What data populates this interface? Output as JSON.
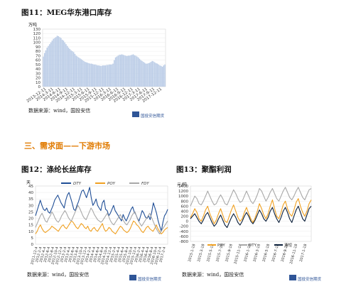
{
  "figures": {
    "f11": {
      "title": "图11：MEG华东港口库存",
      "unit": "万吨",
      "source": "数据来源：wind，国投安信",
      "logo": "国投安信期货"
    },
    "f12": {
      "title": "图12：涤纶长丝库存",
      "unit": "天",
      "source": "数据来源：wind，国投安信",
      "logo": "国投安信期货"
    },
    "f13": {
      "title": "图13：聚酯利润",
      "unit": "元/吨",
      "source": "数据来源：wind，国投安信",
      "logo": "国投安信期货"
    }
  },
  "section_heading": "三、需求面——下游市场",
  "colors": {
    "bar": "#b9cbe6",
    "dty": "#1f4e96",
    "poy": "#f0a020",
    "fdy": "#a8a8a8",
    "section": "#e07a00",
    "logo": "#2f5597"
  },
  "chart_data": [
    {
      "id": "meg-inventory",
      "type": "bar",
      "ylim": [
        0,
        130
      ],
      "yticks": [
        0,
        10,
        20,
        30,
        40,
        50,
        60,
        70,
        80,
        90,
        100,
        110,
        120,
        130
      ],
      "xticks": [
        "2013-12-11",
        "2014-3-11",
        "2014-6-11",
        "2014-9-11",
        "2014-12-11",
        "2015-3-11",
        "2015-6-11",
        "2015-9-11",
        "2015-12-11",
        "2016-3-11",
        "2016-6-11",
        "2016-9-11",
        "2016-12-11",
        "2017-3-11",
        "2017-6-11",
        "2017-9-11",
        "2017-12-11"
      ],
      "series": [
        {
          "values": [
            68,
            76,
            82,
            88,
            92,
            96,
            100,
            104,
            108,
            110,
            112,
            115,
            114,
            112,
            110,
            106,
            104,
            100,
            96,
            92,
            88,
            85,
            82,
            80,
            78,
            74,
            70,
            68,
            66,
            64,
            62,
            60,
            58,
            56,
            55,
            54,
            53,
            52,
            52,
            51,
            50,
            50,
            49,
            48,
            48,
            47,
            47,
            48,
            48,
            48,
            49,
            49,
            50,
            50,
            50,
            52,
            60,
            66,
            68,
            70,
            72,
            72,
            73,
            72,
            71,
            70,
            69,
            70,
            70,
            71,
            72,
            73,
            71,
            70,
            68,
            66,
            63,
            60,
            58,
            56,
            54,
            52,
            52,
            53,
            54,
            56,
            58,
            57,
            55,
            53,
            52,
            50,
            48,
            47,
            45,
            48,
            50
          ]
        }
      ]
    },
    {
      "id": "filament-inventory",
      "type": "line",
      "ylim": [
        0,
        45
      ],
      "yticks": [
        0,
        5,
        10,
        15,
        20,
        25,
        30,
        35,
        40,
        45
      ],
      "xticks": [
        "2011-12-4",
        "2012-2-4",
        "2012-4-4",
        "2012-6-4",
        "2012-8-4",
        "2012-10-4",
        "2012-12-4",
        "2013-2-4",
        "2013-4-4",
        "2013-6-4",
        "2013-8-4",
        "2013-10-4",
        "2013-12-4",
        "2014-2-4",
        "2014-4-4",
        "2014-6-4",
        "2014-8-4",
        "2014-10-4",
        "2014-12-4",
        "2015-2-4",
        "2015-4-4",
        "2015-6-4",
        "2015-8-4",
        "2015-10-4",
        "2015-12-4",
        "2016-2-4",
        "2016-4-4",
        "2016-6-4",
        "2016-8-4",
        "2016-10-4",
        "2016-12-4",
        "2017-2-4"
      ],
      "legend": [
        "DTY",
        "POY",
        "FDY"
      ],
      "series": [
        {
          "name": "DTY",
          "values": [
            22,
            26,
            30,
            34,
            30,
            27,
            26,
            28,
            25,
            24,
            27,
            30,
            34,
            36,
            38,
            35,
            32,
            30,
            28,
            34,
            38,
            40,
            36,
            32,
            27,
            26,
            30,
            33,
            37,
            41,
            42,
            39,
            36,
            40,
            44,
            36,
            30,
            32,
            35,
            30,
            28,
            26,
            32,
            34,
            27,
            26,
            22,
            24,
            27,
            30,
            26,
            24,
            22,
            20,
            18,
            23,
            20,
            18,
            21,
            24,
            27,
            29,
            25,
            23,
            20,
            18,
            22,
            26,
            24,
            21,
            20,
            22,
            19,
            25,
            32,
            28,
            24,
            18,
            14,
            10,
            17,
            22,
            24,
            27
          ]
        },
        {
          "name": "POY",
          "values": [
            8,
            10,
            13,
            15,
            12,
            10,
            9,
            10,
            11,
            12,
            14,
            13,
            12,
            11,
            10,
            12,
            14,
            15,
            13,
            12,
            14,
            16,
            18,
            17,
            15,
            13,
            12,
            14,
            16,
            15,
            13,
            12,
            14,
            11,
            10,
            12,
            13,
            11,
            10,
            12,
            14,
            16,
            12,
            10,
            11,
            13,
            12,
            10,
            9,
            8,
            10,
            12,
            14,
            13,
            11,
            10,
            9,
            10,
            12,
            15,
            18,
            17,
            15,
            14,
            12,
            10,
            9,
            11,
            13,
            14,
            12,
            11,
            10,
            12,
            15,
            12,
            10,
            8,
            9,
            11,
            12,
            13
          ]
        },
        {
          "name": "FDY",
          "values": [
            13,
            16,
            19,
            22,
            24,
            21,
            18,
            17,
            20,
            22,
            25,
            23,
            20,
            18,
            17,
            19,
            22,
            24,
            26,
            24,
            21,
            19,
            18,
            21,
            24,
            27,
            30,
            28,
            25,
            22,
            20,
            19,
            22,
            25,
            28,
            26,
            23,
            21,
            19,
            18,
            17,
            18,
            20,
            22,
            24,
            21,
            18,
            16,
            15,
            17,
            19,
            21,
            23,
            20,
            18,
            16,
            15,
            17,
            19,
            22,
            24,
            25,
            21,
            18,
            16,
            14,
            16,
            18,
            20,
            22,
            24,
            21,
            18,
            15,
            12,
            10,
            8,
            10,
            12,
            14,
            16,
            18
          ]
        }
      ]
    },
    {
      "id": "polyester-profit",
      "type": "line",
      "ylim": [
        -800,
        1400
      ],
      "yticks": [
        -800,
        -600,
        -400,
        -200,
        0,
        200,
        400,
        600,
        800,
        1000,
        1200,
        1400
      ],
      "xticks": [
        "2015-1-18",
        "2015-3-18",
        "2015-5-18",
        "2015-7-18",
        "2015-9-18",
        "2015-11-18",
        "2016-1-18",
        "2016-3-18",
        "2016-5-18",
        "2016-7-18",
        "2016-9-18",
        "2016-11-18",
        "2017-1-18"
      ],
      "legend": [
        "POY",
        "DTY",
        "涤短"
      ],
      "series": [
        {
          "name": "POY",
          "values": [
            150,
            300,
            500,
            350,
            100,
            0,
            200,
            450,
            600,
            300,
            100,
            -100,
            50,
            300,
            500,
            250,
            0,
            -50,
            200,
            450,
            650,
            400,
            150,
            0,
            100,
            350,
            550,
            300,
            100,
            -50,
            150,
            400,
            700,
            500,
            250,
            100,
            300,
            600,
            850,
            500,
            200,
            100,
            350,
            650,
            800,
            500,
            300,
            200,
            450,
            750,
            900,
            600,
            350,
            200,
            400,
            700,
            850
          ]
        },
        {
          "name": "DTY",
          "values": [
            600,
            800,
            1000,
            900,
            700,
            650,
            800,
            1000,
            1200,
            1000,
            800,
            650,
            700,
            900,
            1050,
            900,
            700,
            650,
            850,
            1050,
            1250,
            1100,
            900,
            750,
            800,
            1000,
            1200,
            1000,
            800,
            700,
            850,
            1050,
            1300,
            1200,
            1000,
            800,
            950,
            1150,
            1300,
            1100,
            900,
            800,
            1000,
            1200,
            1350,
            1150,
            950,
            850,
            1000,
            1200,
            1350,
            1150,
            950,
            850,
            1050,
            1250,
            1300
          ]
        },
        {
          "name": "涤短",
          "values": [
            100,
            200,
            300,
            150,
            0,
            -100,
            50,
            250,
            350,
            150,
            -50,
            -200,
            -100,
            100,
            250,
            50,
            -150,
            -250,
            -50,
            150,
            300,
            150,
            -50,
            -150,
            0,
            200,
            350,
            200,
            0,
            -100,
            50,
            250,
            450,
            300,
            100,
            0,
            150,
            400,
            550,
            300,
            100,
            -50,
            150,
            400,
            550,
            350,
            100,
            -50,
            200,
            450,
            600,
            350,
            100,
            0,
            250,
            500,
            600
          ]
        }
      ]
    }
  ]
}
